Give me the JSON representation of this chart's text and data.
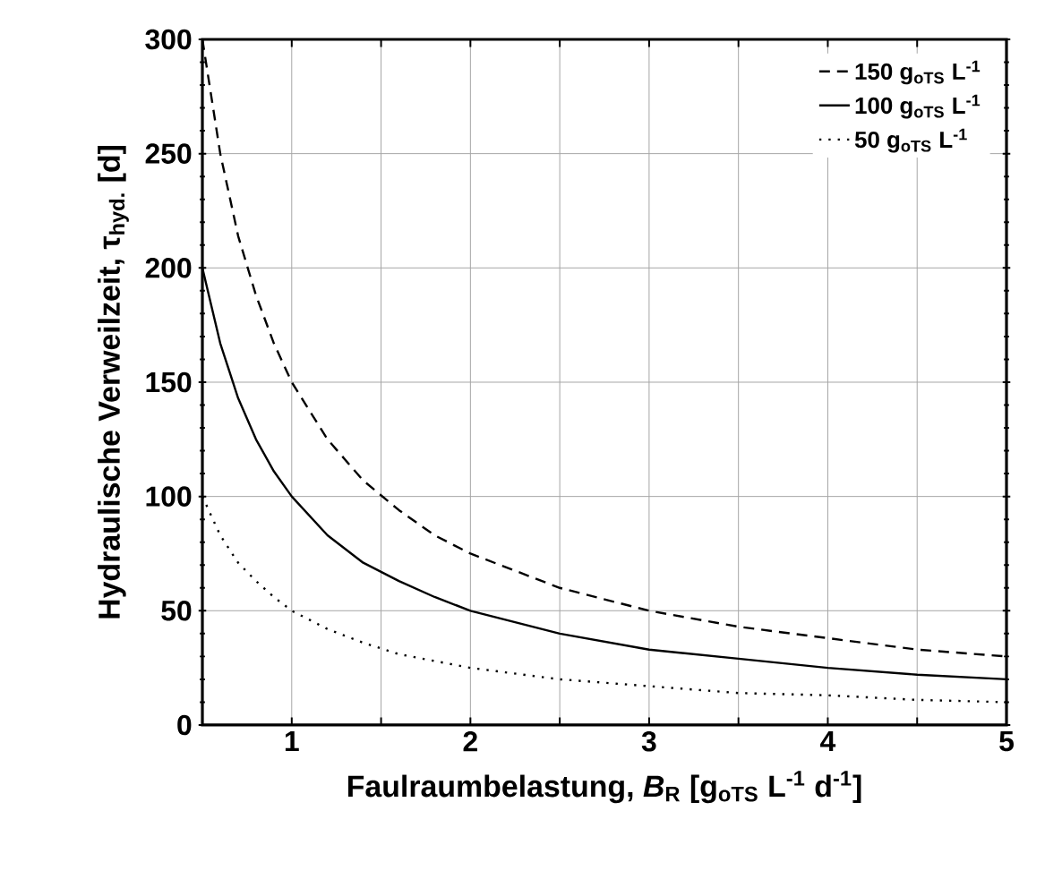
{
  "chart_data": {
    "type": "line",
    "xlabel": "Faulraumbelastung, *B*$_{R}$ [g$_{oTS}$ L$^{-1}$ d$^{-1}$]",
    "ylabel": "Hydraulische Verweilzeit, τ$_{hyd.}$ [d]",
    "x": [
      0.5,
      0.6,
      0.7,
      0.8,
      0.9,
      1,
      1.2,
      1.4,
      1.6,
      1.8,
      2,
      2.5,
      3,
      3.5,
      4,
      4.5,
      5
    ],
    "series": [
      {
        "name": "150 g$_{oTS}$ L$^{-1}$",
        "color": "#000000",
        "line_style": "dashed",
        "values": [
          300,
          250,
          214,
          188,
          167,
          150,
          125,
          107,
          94,
          83,
          75,
          60,
          50,
          43,
          38,
          33,
          30
        ]
      },
      {
        "name": "100 g$_{oTS}$ L$^{-1}$",
        "color": "#000000",
        "line_style": "solid",
        "values": [
          200,
          167,
          143,
          125,
          111,
          100,
          83,
          71,
          63,
          56,
          50,
          40,
          33,
          29,
          25,
          22,
          20
        ]
      },
      {
        "name": "50 g$_{oTS}$ L$^{-1}$",
        "color": "#000000",
        "line_style": "dotted",
        "values": [
          100,
          83,
          71,
          63,
          56,
          50,
          42,
          36,
          31,
          28,
          25,
          20,
          17,
          14,
          13,
          11,
          10
        ]
      }
    ],
    "xlim": [
      0.5,
      5
    ],
    "ylim": [
      0,
      300
    ],
    "xticks": [
      {
        "value": 0.5,
        "label": null
      },
      1,
      {
        "value": 1.5,
        "label": null
      },
      2,
      {
        "value": 2.5,
        "label": null
      },
      3,
      {
        "value": 3.5,
        "label": null
      },
      4,
      {
        "value": 4.5,
        "label": null
      },
      5
    ],
    "yticks": [
      0,
      50,
      100,
      150,
      200,
      250,
      300
    ],
    "grid": true,
    "legend": "top right",
    "marker": "none"
  }
}
